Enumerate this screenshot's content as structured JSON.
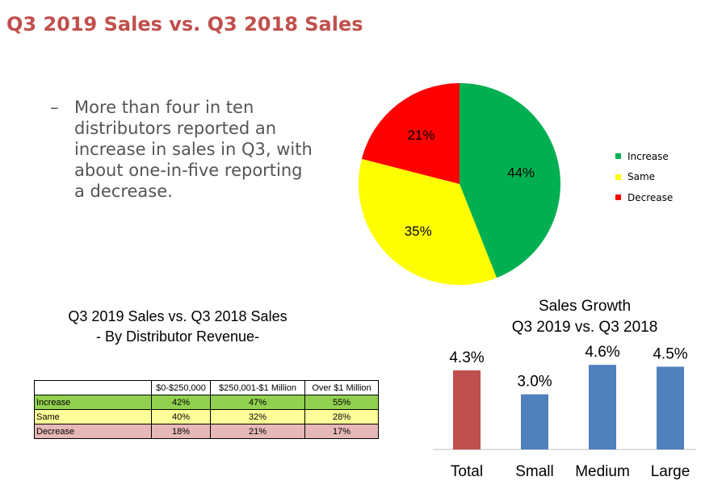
{
  "title": "Q3 2019 Sales vs. Q3 2018 Sales",
  "bullet": {
    "dash": "–",
    "text": "More than four in ten distributors reported an increase in sales in Q3, with about one-in-five reporting a decrease."
  },
  "table": {
    "title_line1": "Q3 2019 Sales vs. Q3 2018 Sales",
    "title_line2": "- By Distributor Revenue-",
    "headers": [
      "",
      "$0-$250,000",
      "$250,001-$1 Million",
      "Over $1 Million"
    ],
    "rows": [
      {
        "label": "Increase",
        "values": [
          "42%",
          "47%",
          "55%"
        ],
        "color": "#92d050"
      },
      {
        "label": "Same",
        "values": [
          "40%",
          "32%",
          "28%"
        ],
        "color": "#ffff99"
      },
      {
        "label": "Decrease",
        "values": [
          "18%",
          "21%",
          "17%"
        ],
        "color": "#e6b8b7"
      }
    ]
  },
  "legend": [
    {
      "label": "Increase",
      "color": "#00b050"
    },
    {
      "label": "Same",
      "color": "#ffff00"
    },
    {
      "label": "Decrease",
      "color": "#ff0000"
    }
  ],
  "chart_data": [
    {
      "type": "pie",
      "categories": [
        "Increase",
        "Same",
        "Decrease"
      ],
      "values": [
        44,
        35,
        21
      ],
      "labels": [
        "44%",
        "35%",
        "21%"
      ],
      "colors": [
        "#00b050",
        "#ffff00",
        "#ff0000"
      ],
      "legend_position": "right"
    },
    {
      "type": "bar",
      "title": "Sales Growth\nQ3 2019 vs. Q3 2018",
      "title_line1": "Sales Growth",
      "title_line2": "Q3 2019 vs. Q3 2018",
      "categories": [
        "Total",
        "Small",
        "Medium",
        "Large"
      ],
      "values": [
        4.3,
        3.0,
        4.6,
        4.5
      ],
      "labels": [
        "4.3%",
        "3.0%",
        "4.6%",
        "4.5%"
      ],
      "colors": [
        "#c0504d",
        "#4f81bd",
        "#4f81bd",
        "#4f81bd"
      ],
      "ylim": [
        0,
        5
      ]
    }
  ]
}
